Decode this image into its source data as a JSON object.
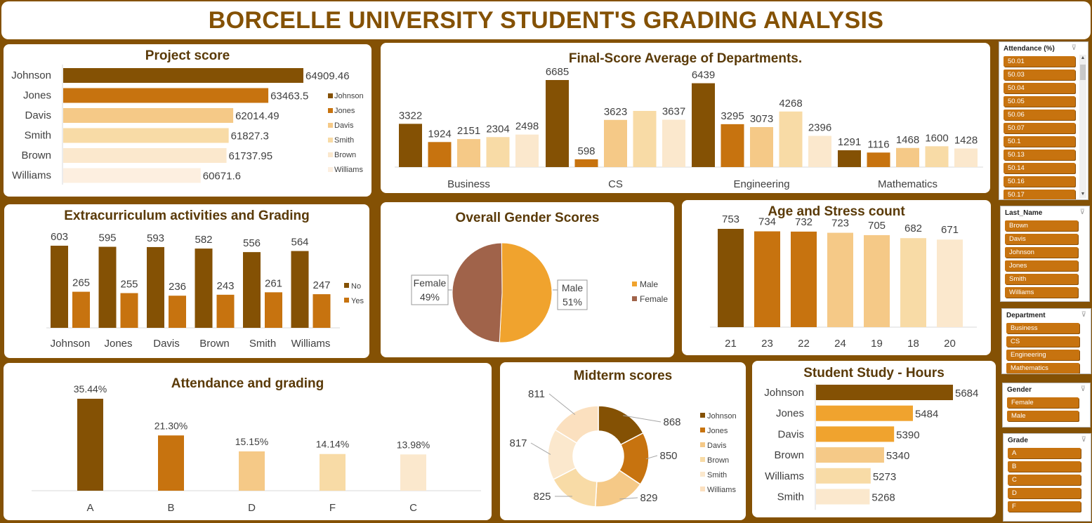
{
  "title": "BORCELLE UNIVERSITY STUDENT'S GRADING ANALYSIS",
  "colors": {
    "background": "#845104",
    "c1": "#845104",
    "c2": "#c7730f",
    "c3": "#f5c987",
    "c4": "#f8dba6",
    "c5": "#fbe8cd",
    "c6": "#fdefe0",
    "male": "#f0a32e",
    "female": "#a0634a"
  },
  "charts": {
    "project_score": {
      "title": "Project score",
      "legend": [
        "Johnson",
        "Jones",
        "Davis",
        "Smith",
        "Brown",
        "Williams"
      ]
    },
    "final_score": {
      "title": "Final-Score Average of Departments."
    },
    "extracurricular": {
      "title": "Extracurriculum activities and Grading",
      "legend": [
        "No",
        "Yes"
      ]
    },
    "gender": {
      "title": "Overall Gender Scores",
      "legend": [
        "Male",
        "Female"
      ],
      "label_female_name": "Female",
      "label_female_pct": "49%",
      "label_male_name": "Male",
      "label_male_pct": "51%"
    },
    "age_stress": {
      "title": "Age and Stress count"
    },
    "attendance": {
      "title": "Attendance and grading"
    },
    "midterm": {
      "title": "Midterm scores",
      "legend": [
        "Johnson",
        "Jones",
        "Davis",
        "Brown",
        "Smith",
        "Williams"
      ]
    },
    "study_hours": {
      "title": "Student Study - Hours"
    }
  },
  "chart_data": [
    {
      "type": "bar",
      "orientation": "horizontal",
      "title": "Project score",
      "categories": [
        "Johnson",
        "Jones",
        "Davis",
        "Smith",
        "Brown",
        "Williams"
      ],
      "values": [
        64909.46,
        63463.5,
        62014.49,
        61827.3,
        61737.95,
        60671.6
      ],
      "value_labels": [
        "64909.46",
        "63463.5",
        "62014.49",
        "61827.3",
        "61737.95",
        "60671.6"
      ],
      "colors": [
        "#845104",
        "#c7730f",
        "#f5c987",
        "#f8dba6",
        "#fbe8cd",
        "#fdefe0"
      ],
      "legend_position": "right"
    },
    {
      "type": "bar",
      "title": "Final-Score Average of Departments.",
      "categories": [
        "Business",
        "CS",
        "Engineering",
        "Mathematics"
      ],
      "series": [
        {
          "values": [
            3322,
            6685,
            6439,
            1291
          ]
        },
        {
          "values": [
            1924,
            598,
            3295,
            1116
          ]
        },
        {
          "values": [
            2151,
            3623,
            3073,
            1468
          ]
        },
        {
          "values": [
            2304,
            null,
            4268,
            1600
          ]
        },
        {
          "values": [
            2498,
            3637,
            2396,
            1428
          ]
        }
      ],
      "colors": [
        "#845104",
        "#c7730f",
        "#f5c987",
        "#f8dba6",
        "#fbe8cd"
      ]
    },
    {
      "type": "bar",
      "title": "Extracurriculum activities and Grading",
      "categories": [
        "Johnson",
        "Jones",
        "Davis",
        "Brown",
        "Smith",
        "Williams"
      ],
      "series": [
        {
          "name": "No",
          "values": [
            603,
            595,
            593,
            582,
            556,
            564
          ]
        },
        {
          "name": "Yes",
          "values": [
            265,
            255,
            236,
            243,
            261,
            247
          ]
        }
      ],
      "colors": [
        "#845104",
        "#c7730f"
      ],
      "legend_position": "right"
    },
    {
      "type": "pie",
      "title": "Overall Gender Scores",
      "categories": [
        "Male",
        "Female"
      ],
      "values": [
        51,
        49
      ],
      "value_labels": [
        "51%",
        "49%"
      ],
      "colors": [
        "#f0a32e",
        "#a0634a"
      ],
      "legend_position": "right"
    },
    {
      "type": "bar",
      "title": "Age and Stress count",
      "categories": [
        "21",
        "23",
        "22",
        "24",
        "19",
        "18",
        "20"
      ],
      "values": [
        753,
        734,
        732,
        723,
        705,
        682,
        671
      ],
      "colors": [
        "#845104",
        "#c7730f",
        "#c7730f",
        "#f5c987",
        "#f5c987",
        "#f8dba6",
        "#fbe8cd"
      ]
    },
    {
      "type": "bar",
      "title": "Attendance and grading",
      "categories": [
        "A",
        "B",
        "D",
        "F",
        "C"
      ],
      "values": [
        35.44,
        21.3,
        15.15,
        14.14,
        13.98
      ],
      "value_labels": [
        "35.44%",
        "21.30%",
        "15.15%",
        "14.14%",
        "13.98%"
      ],
      "colors": [
        "#845104",
        "#c7730f",
        "#f5c987",
        "#f8dba6",
        "#fbe8cd"
      ]
    },
    {
      "type": "pie",
      "style": "donut",
      "title": "Midterm scores",
      "categories": [
        "Johnson",
        "Jones",
        "Davis",
        "Brown",
        "Smith",
        "Williams"
      ],
      "values": [
        868,
        850,
        829,
        825,
        817,
        811
      ],
      "colors": [
        "#845104",
        "#c7730f",
        "#f5c987",
        "#f8dba6",
        "#fbe8cd",
        "#fbe0bf"
      ],
      "legend_position": "right"
    },
    {
      "type": "bar",
      "orientation": "horizontal",
      "title": "Student Study - Hours",
      "categories": [
        "Johnson",
        "Jones",
        "Davis",
        "Brown",
        "Williams",
        "Smith"
      ],
      "values": [
        5684,
        5484,
        5390,
        5340,
        5273,
        5268
      ],
      "colors": [
        "#845104",
        "#f0a32e",
        "#f0a32e",
        "#f5c987",
        "#f8dba6",
        "#fbe8cd"
      ]
    }
  ],
  "slicers": [
    {
      "title": "Attendance (%)",
      "items": [
        "50.01",
        "50.03",
        "50.04",
        "50.05",
        "50.06",
        "50.07",
        "50.1",
        "50.13",
        "50.14",
        "50.16",
        "50.17"
      ]
    },
    {
      "title": "Last_Name",
      "items": [
        "Brown",
        "Davis",
        "Johnson",
        "Jones",
        "Smith",
        "Williams"
      ]
    },
    {
      "title": "Department",
      "items": [
        "Business",
        "CS",
        "Engineering",
        "Mathematics"
      ]
    },
    {
      "title": "Gender",
      "items": [
        "Female",
        "Male"
      ]
    },
    {
      "title": "Grade",
      "items": [
        "A",
        "B",
        "C",
        "D",
        "F"
      ]
    }
  ]
}
